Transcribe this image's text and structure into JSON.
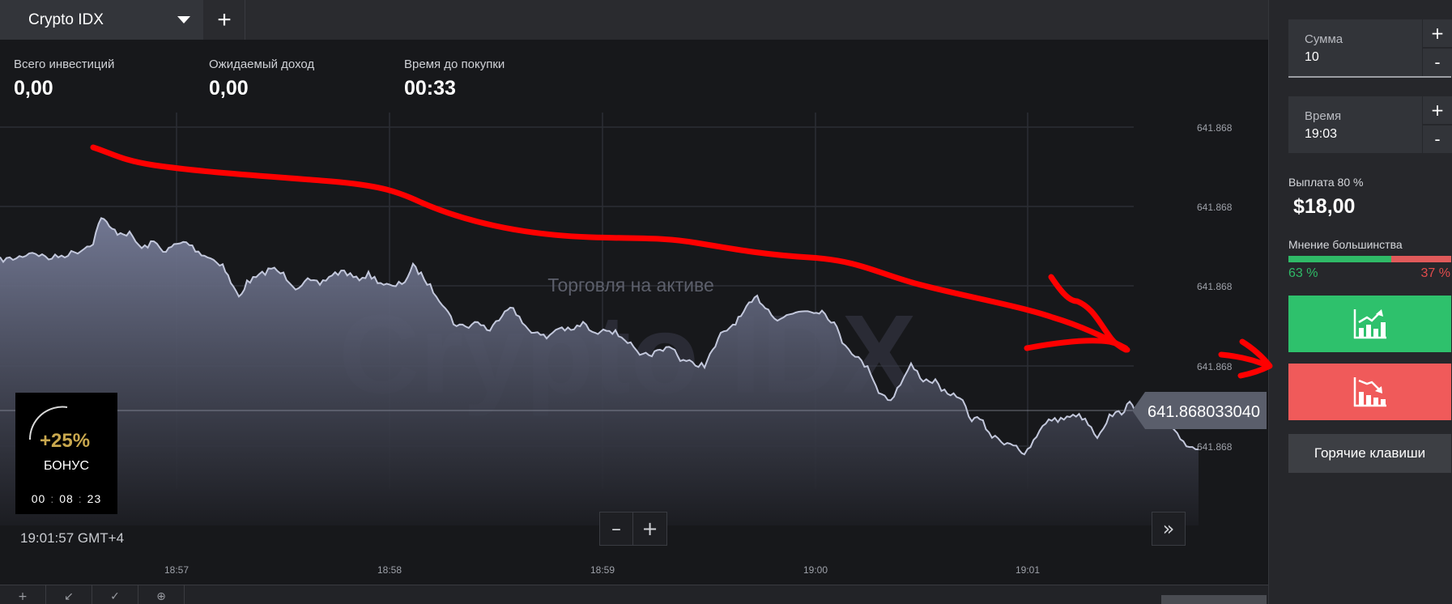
{
  "tabbar": {
    "asset_name": "Crypto IDX",
    "add_label": "+"
  },
  "stats": {
    "total_invest_label": "Всего инвестиций",
    "total_invest_value": "0,00",
    "expected_label": "Ожидаемый доход",
    "expected_value": "0,00",
    "time_label": "Время до покупки",
    "time_value": "00:33"
  },
  "chart": {
    "watermark": "Crypto IDX",
    "subtitle": "Торговля на активе",
    "y_ticks": [
      "641.868",
      "641.868",
      "641.868",
      "641.868",
      "641.868"
    ],
    "x_ticks": [
      "18:57",
      "18:58",
      "18:59",
      "19:00",
      "19:01"
    ],
    "current_price": "641.868033040",
    "line_color": "#c3c8dc",
    "fill_color": "#6f7590",
    "annotation_color": "#ff0000"
  },
  "bonus": {
    "percent": "+25%",
    "label": "БОНУС",
    "h": "00",
    "m": "08",
    "s": "23"
  },
  "clock": "19:01:57 GMT+4",
  "zoom": {
    "minus": "–",
    "plus": "+"
  },
  "fastforward": "»",
  "toolbar": {
    "tools": [
      "+",
      "↙",
      "✓",
      "⊕"
    ]
  },
  "panel": {
    "amount_label": "Сумма",
    "amount_value": "10",
    "time_label": "Время",
    "time_value": "19:03",
    "plus": "+",
    "minus": "-",
    "payout_label": "Выплата 80 %",
    "payout_value": "$18,00",
    "majority_label": "Мнение большинства",
    "majority_up_pct": 63,
    "majority_up_text": "63 %",
    "majority_down_text": "37 %",
    "up_color": "#2ec16c",
    "down_color": "#f05a5a",
    "up_icon": "chart-up-icon",
    "down_icon": "chart-down-icon",
    "hotkeys_label": "Горячие клавиши"
  }
}
